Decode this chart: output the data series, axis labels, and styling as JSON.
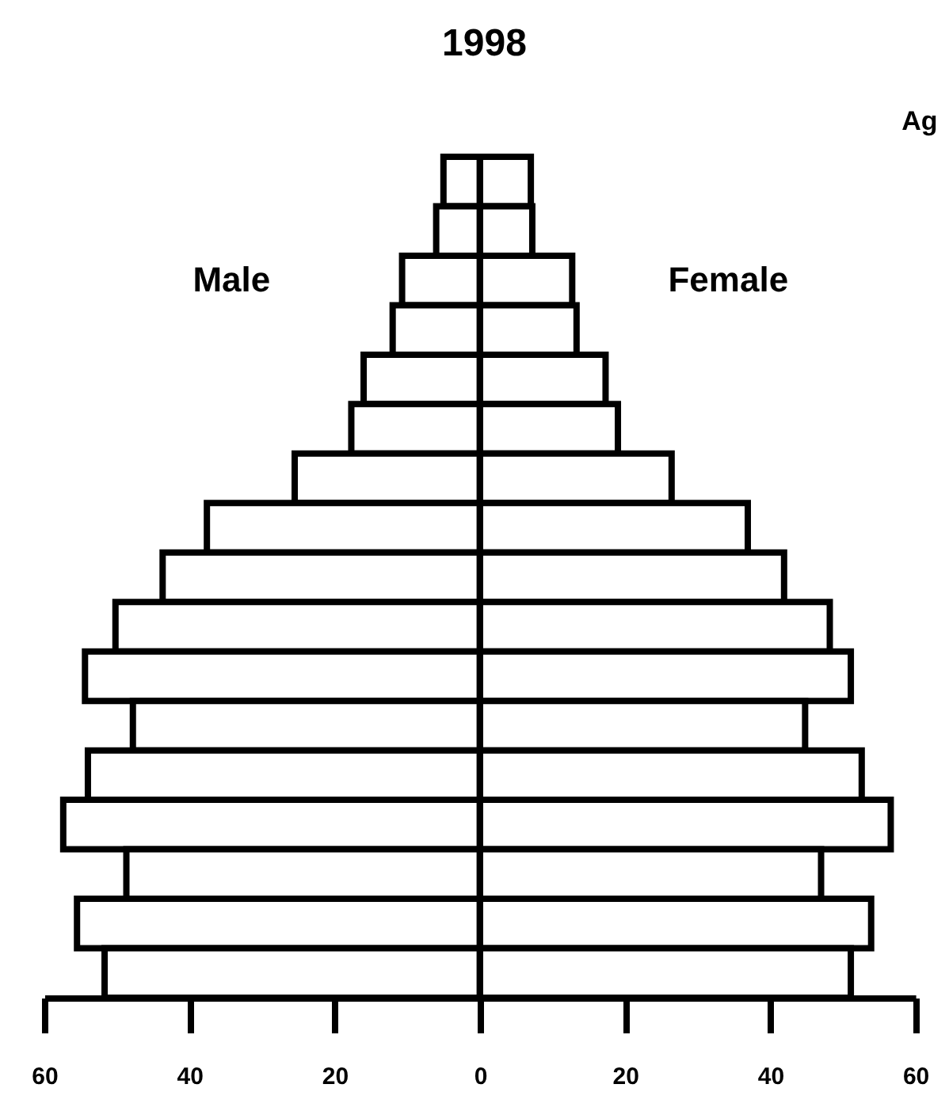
{
  "chart_data": [
    {
      "type": "bar",
      "orientation": "horizontal",
      "title": "1998",
      "categories": [
        null,
        null,
        null,
        null,
        null,
        null,
        null,
        null,
        null,
        null,
        null,
        null,
        null,
        null,
        null,
        null,
        null
      ],
      "series": [
        {
          "name": "Male",
          "color": "#ffffff",
          "values": [
            5,
            6,
            10.7,
            12,
            16,
            17.7,
            25.5,
            37.6,
            43.7,
            50.2,
            54.4,
            47.8,
            54,
            57.4,
            48.7,
            55.5,
            51.7
          ]
        }
      ],
      "xlim": [
        60,
        0
      ],
      "xticks": [
        60,
        40,
        20
      ],
      "tick_labels": "x",
      "grid": false
    },
    {
      "type": "bar",
      "orientation": "horizontal",
      "annotations": [
        "Ag"
      ],
      "categories": [
        null,
        null,
        null,
        null,
        null,
        null,
        null,
        null,
        null,
        null,
        null,
        null,
        null,
        null,
        null,
        null,
        null
      ],
      "series": [
        {
          "name": "Female",
          "color": "#ffffff",
          "values": [
            7,
            7.2,
            12.7,
            13.3,
            17.3,
            19,
            26.4,
            36.9,
            41.9,
            48.2,
            51.1,
            44.8,
            52.6,
            56.6,
            47,
            53.9,
            51.1
          ]
        }
      ],
      "xlim": [
        0,
        60
      ],
      "xticks": [
        0,
        20,
        40,
        60
      ],
      "tick_labels": "x",
      "grid": false
    }
  ]
}
